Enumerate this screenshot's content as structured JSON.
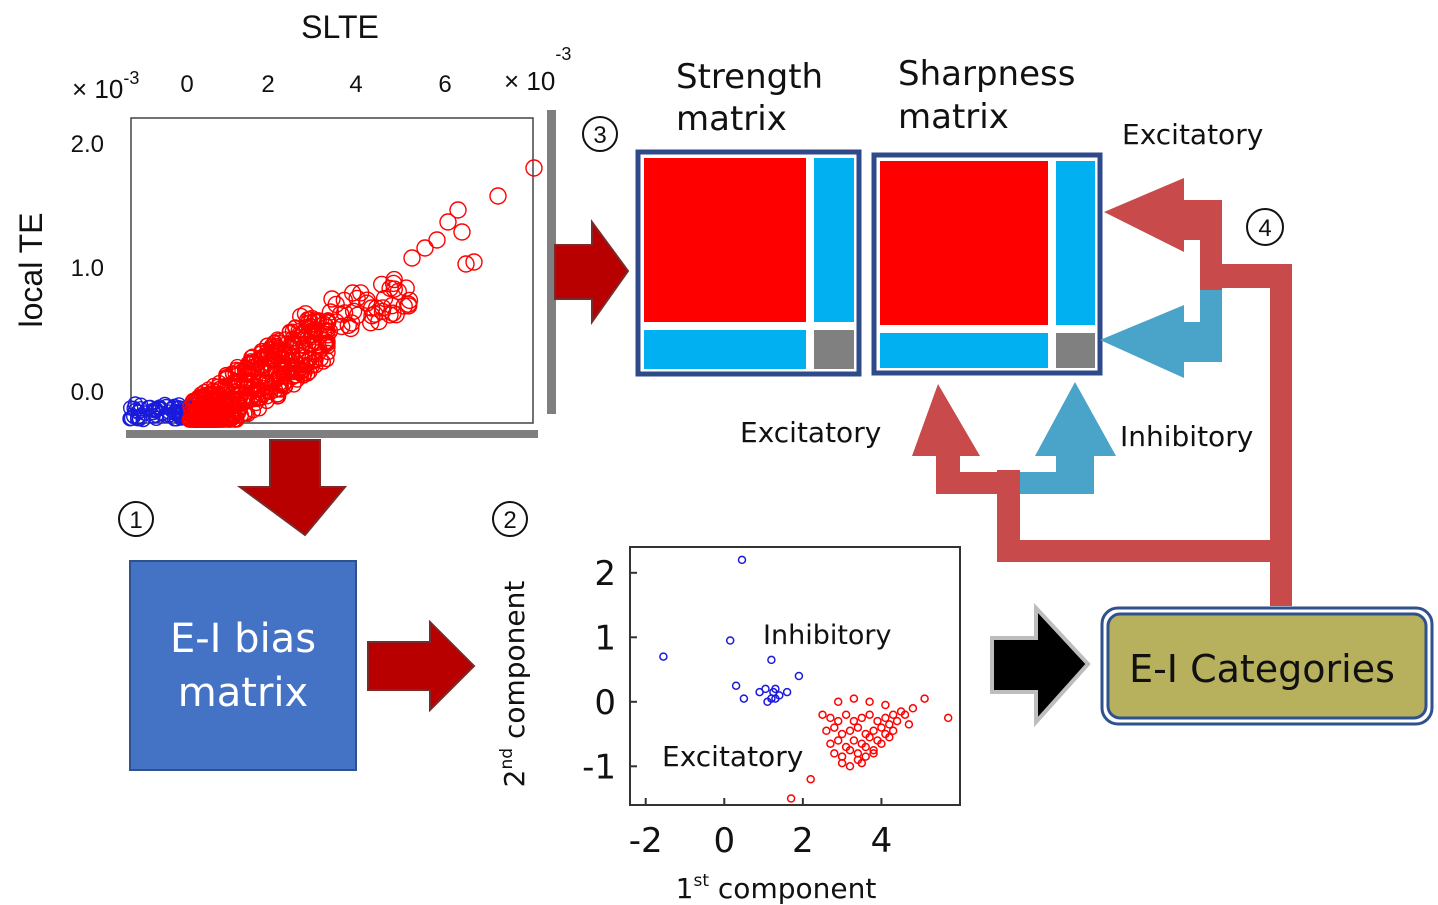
{
  "colors": {
    "excitatory": "#ff0000",
    "inhibitory": "#00b0f0",
    "inhibitory_points": "#1a1adc",
    "arrow_dark_red": "#b80000",
    "arrow_light_red": "#c84a4a",
    "arrow_blue": "#4aa3c8",
    "ei_bias_box": "#4472c4",
    "categories_box": "#b7b15e",
    "matrix_border": "#2f4a8a",
    "diag_gray": "#808080"
  },
  "steps": {
    "s1": "①",
    "s2": "②",
    "s3": "③",
    "s4": "④"
  },
  "scatter1": {
    "top_title": "SLTE",
    "x_exponent_left": "× 10",
    "x_exponent_left_sup": "-3",
    "x_exponent_right": "× 10",
    "x_exponent_right_sup": "-3",
    "x_ticks": [
      "0",
      "2",
      "4",
      "6"
    ],
    "y_ticks": [
      "2.0",
      "1.0",
      "0.0"
    ],
    "ylabel": "local TE"
  },
  "matrices": {
    "strength_title_l1": "Strength",
    "strength_title_l2": "matrix",
    "sharpness_title_l1": "Sharpness",
    "sharpness_title_l2": "matrix"
  },
  "labels": {
    "excitatory_top_right": "Excitatory",
    "excitatory_mid": "Excitatory",
    "inhibitory_mid": "Inhibitory"
  },
  "ei_bias": {
    "line1": "E-I bias",
    "line2": "matrix"
  },
  "categories": {
    "label": "E-I Categories"
  },
  "chart_data": {
    "type": "scatter",
    "x_ticks": [
      "-2",
      "0",
      "2",
      "4"
    ],
    "y_ticks": [
      "2",
      "1",
      "0",
      "-1"
    ],
    "xlim": [
      -2.4,
      6.0
    ],
    "ylim": [
      -1.6,
      2.4
    ],
    "xlabel": "1",
    "xlabel_sup": "st",
    "xlabel_rest": " component",
    "ylabel": "2",
    "ylabel_sup": "nd",
    "ylabel_rest": " component",
    "annotations": {
      "inhibitory": "Inhibitory",
      "excitatory": "Excitatory"
    },
    "series": [
      {
        "name": "Inhibitory",
        "x": [
          0.45,
          -1.55,
          0.15,
          1.2,
          1.9,
          0.3,
          1.05,
          1.25,
          1.3,
          1.6,
          0.5,
          1.1,
          1.2,
          1.3,
          0.9,
          1.4
        ],
        "y": [
          2.2,
          0.7,
          0.95,
          0.65,
          0.4,
          0.25,
          0.2,
          0.15,
          0.2,
          0.15,
          0.05,
          0.0,
          0.05,
          0.05,
          0.15,
          0.1
        ]
      },
      {
        "name": "Excitatory",
        "x": [
          2.5,
          2.7,
          2.9,
          3.1,
          3.3,
          3.5,
          3.7,
          3.9,
          4.1,
          4.3,
          4.5,
          2.6,
          2.8,
          3.0,
          3.2,
          3.4,
          3.6,
          3.8,
          4.0,
          4.2,
          4.4,
          4.6,
          2.7,
          2.9,
          3.1,
          3.3,
          3.5,
          3.7,
          3.9,
          4.1,
          4.3,
          2.8,
          3.0,
          3.2,
          3.4,
          3.6,
          3.8,
          4.0,
          4.2,
          3.0,
          3.2,
          3.4,
          3.6,
          3.8,
          2.9,
          3.3,
          3.7,
          4.1,
          4.8,
          5.1,
          5.7,
          2.2,
          1.7,
          3.5,
          4.7
        ],
        "y": [
          -0.2,
          -0.25,
          -0.3,
          -0.2,
          -0.3,
          -0.25,
          -0.2,
          -0.3,
          -0.25,
          -0.2,
          -0.15,
          -0.45,
          -0.4,
          -0.5,
          -0.45,
          -0.4,
          -0.5,
          -0.45,
          -0.4,
          -0.35,
          -0.3,
          -0.2,
          -0.65,
          -0.6,
          -0.7,
          -0.6,
          -0.65,
          -0.55,
          -0.6,
          -0.5,
          -0.45,
          -0.8,
          -0.85,
          -0.75,
          -0.8,
          -0.7,
          -0.75,
          -0.65,
          -0.55,
          -0.95,
          -1.0,
          -0.9,
          -0.85,
          -0.8,
          0.0,
          0.05,
          0.0,
          -0.05,
          -0.1,
          0.05,
          -0.25,
          -1.2,
          -1.5,
          -0.95,
          -0.35
        ]
      }
    ]
  }
}
